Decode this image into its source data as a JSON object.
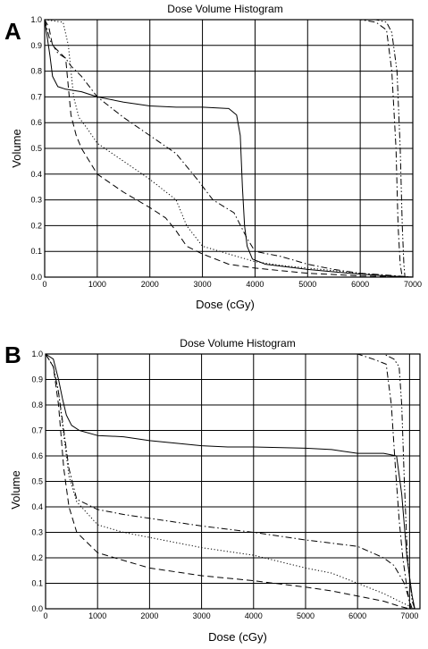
{
  "chart_data": [
    {
      "panel": "A",
      "type": "line",
      "title": "Dose Volume Histogram",
      "xlabel": "Dose (cGy)",
      "ylabel": "Volume",
      "xlim": [
        0,
        7000
      ],
      "ylim": [
        0,
        1
      ],
      "x_ticks": [
        "0",
        "1000",
        "2000",
        "3000",
        "4000",
        "5000",
        "6000",
        "7000"
      ],
      "y_ticks": [
        "0.0",
        "0.1",
        "0.2",
        "0.3",
        "0.4",
        "0.5",
        "0.6",
        "0.7",
        "0.8",
        "0.9",
        "1.0"
      ],
      "grid": true,
      "series": [
        {
          "style": "solid",
          "points": [
            [
              0,
              1.0
            ],
            [
              100,
              0.86
            ],
            [
              150,
              0.78
            ],
            [
              250,
              0.74
            ],
            [
              400,
              0.73
            ],
            [
              700,
              0.72
            ],
            [
              1000,
              0.7
            ],
            [
              1500,
              0.68
            ],
            [
              2000,
              0.665
            ],
            [
              2500,
              0.66
            ],
            [
              3000,
              0.66
            ],
            [
              3500,
              0.655
            ],
            [
              3650,
              0.63
            ],
            [
              3720,
              0.55
            ],
            [
              3760,
              0.35
            ],
            [
              3800,
              0.2
            ],
            [
              3850,
              0.12
            ],
            [
              3950,
              0.07
            ],
            [
              4200,
              0.05
            ],
            [
              5000,
              0.03
            ],
            [
              5800,
              0.015
            ],
            [
              6500,
              0.005
            ],
            [
              7000,
              0.0
            ]
          ]
        },
        {
          "style": "dashdot",
          "points": [
            [
              0,
              1.0
            ],
            [
              100,
              0.92
            ],
            [
              250,
              0.87
            ],
            [
              400,
              0.85
            ],
            [
              500,
              0.82
            ],
            [
              700,
              0.78
            ],
            [
              1000,
              0.7
            ],
            [
              1500,
              0.62
            ],
            [
              2000,
              0.55
            ],
            [
              2500,
              0.48
            ],
            [
              2900,
              0.38
            ],
            [
              3200,
              0.3
            ],
            [
              3600,
              0.25
            ],
            [
              3850,
              0.15
            ],
            [
              4000,
              0.1
            ],
            [
              4500,
              0.08
            ],
            [
              5000,
              0.05
            ],
            [
              5500,
              0.03
            ],
            [
              6000,
              0.015
            ],
            [
              6500,
              0.008
            ],
            [
              7000,
              0.0
            ]
          ]
        },
        {
          "style": "dotted",
          "points": [
            [
              0,
              1.0
            ],
            [
              350,
              0.99
            ],
            [
              450,
              0.9
            ],
            [
              550,
              0.7
            ],
            [
              650,
              0.62
            ],
            [
              800,
              0.58
            ],
            [
              1000,
              0.52
            ],
            [
              1500,
              0.45
            ],
            [
              2000,
              0.38
            ],
            [
              2500,
              0.3
            ],
            [
              2700,
              0.2
            ],
            [
              3000,
              0.12
            ],
            [
              3500,
              0.09
            ],
            [
              4000,
              0.06
            ],
            [
              4500,
              0.045
            ],
            [
              5000,
              0.035
            ],
            [
              5500,
              0.025
            ],
            [
              6000,
              0.015
            ],
            [
              6500,
              0.005
            ],
            [
              7000,
              0.0
            ]
          ]
        },
        {
          "style": "dashed",
          "points": [
            [
              0,
              1.0
            ],
            [
              80,
              0.97
            ],
            [
              150,
              0.9
            ],
            [
              250,
              0.88
            ],
            [
              400,
              0.85
            ],
            [
              500,
              0.63
            ],
            [
              600,
              0.55
            ],
            [
              700,
              0.5
            ],
            [
              1000,
              0.4
            ],
            [
              1500,
              0.33
            ],
            [
              2000,
              0.27
            ],
            [
              2300,
              0.23
            ],
            [
              2500,
              0.18
            ],
            [
              2700,
              0.12
            ],
            [
              3000,
              0.09
            ],
            [
              3500,
              0.05
            ],
            [
              4000,
              0.035
            ],
            [
              4500,
              0.025
            ],
            [
              5000,
              0.015
            ],
            [
              5500,
              0.01
            ],
            [
              6000,
              0.005
            ],
            [
              7000,
              0.0
            ]
          ]
        },
        {
          "style": "dashdot",
          "points": [
            [
              0,
              1.0
            ],
            [
              6000,
              1.0
            ],
            [
              6300,
              0.99
            ],
            [
              6500,
              0.96
            ],
            [
              6600,
              0.8
            ],
            [
              6680,
              0.5
            ],
            [
              6720,
              0.2
            ],
            [
              6760,
              0.05
            ],
            [
              6800,
              0.0
            ]
          ]
        },
        {
          "style": "dashdotdot",
          "points": [
            [
              0,
              1.0
            ],
            [
              6300,
              1.0
            ],
            [
              6500,
              0.99
            ],
            [
              6600,
              0.95
            ],
            [
              6700,
              0.8
            ],
            [
              6760,
              0.5
            ],
            [
              6800,
              0.2
            ],
            [
              6830,
              0.05
            ],
            [
              6850,
              0.0
            ]
          ]
        }
      ]
    },
    {
      "panel": "B",
      "type": "line",
      "title": "Dose Volume Histogram",
      "xlabel": "Dose (cGy)",
      "ylabel": "Volume",
      "xlim": [
        0,
        7200
      ],
      "ylim": [
        0,
        1
      ],
      "x_ticks": [
        "0",
        "1000",
        "2000",
        "3000",
        "4000",
        "5000",
        "6000",
        "7000"
      ],
      "y_ticks": [
        "0.0",
        "0.1",
        "0.2",
        "0.3",
        "0.4",
        "0.5",
        "0.6",
        "0.7",
        "0.8",
        "0.9",
        "1.0"
      ],
      "grid": true,
      "series": [
        {
          "style": "solid",
          "points": [
            [
              0,
              1.0
            ],
            [
              150,
              0.98
            ],
            [
              250,
              0.9
            ],
            [
              330,
              0.82
            ],
            [
              400,
              0.76
            ],
            [
              500,
              0.72
            ],
            [
              650,
              0.7
            ],
            [
              1000,
              0.68
            ],
            [
              1500,
              0.675
            ],
            [
              2000,
              0.66
            ],
            [
              2500,
              0.65
            ],
            [
              3000,
              0.64
            ],
            [
              3500,
              0.635
            ],
            [
              4000,
              0.635
            ],
            [
              5000,
              0.63
            ],
            [
              5500,
              0.625
            ],
            [
              6000,
              0.61
            ],
            [
              6500,
              0.61
            ],
            [
              6750,
              0.6
            ],
            [
              6850,
              0.45
            ],
            [
              6950,
              0.2
            ],
            [
              7050,
              0.05
            ],
            [
              7100,
              0.0
            ]
          ]
        },
        {
          "style": "dashdot",
          "points": [
            [
              0,
              1.0
            ],
            [
              150,
              0.95
            ],
            [
              250,
              0.85
            ],
            [
              350,
              0.7
            ],
            [
              450,
              0.55
            ],
            [
              600,
              0.43
            ],
            [
              1000,
              0.39
            ],
            [
              1500,
              0.37
            ],
            [
              2000,
              0.355
            ],
            [
              3000,
              0.325
            ],
            [
              4000,
              0.3
            ],
            [
              5000,
              0.27
            ],
            [
              6000,
              0.245
            ],
            [
              6500,
              0.2
            ],
            [
              6700,
              0.17
            ],
            [
              6900,
              0.1
            ],
            [
              7000,
              0.03
            ],
            [
              7050,
              0.0
            ]
          ]
        },
        {
          "style": "dotted",
          "points": [
            [
              0,
              1.0
            ],
            [
              150,
              0.95
            ],
            [
              250,
              0.85
            ],
            [
              350,
              0.68
            ],
            [
              450,
              0.52
            ],
            [
              600,
              0.42
            ],
            [
              1000,
              0.33
            ],
            [
              1500,
              0.3
            ],
            [
              2000,
              0.28
            ],
            [
              3000,
              0.24
            ],
            [
              4000,
              0.21
            ],
            [
              5000,
              0.16
            ],
            [
              5500,
              0.14
            ],
            [
              6000,
              0.1
            ],
            [
              6500,
              0.06
            ],
            [
              6800,
              0.03
            ],
            [
              7000,
              0.01
            ],
            [
              7100,
              0.0
            ]
          ]
        },
        {
          "style": "dashed",
          "points": [
            [
              0,
              1.0
            ],
            [
              150,
              0.95
            ],
            [
              250,
              0.8
            ],
            [
              350,
              0.55
            ],
            [
              450,
              0.4
            ],
            [
              600,
              0.3
            ],
            [
              1000,
              0.22
            ],
            [
              1500,
              0.19
            ],
            [
              2000,
              0.16
            ],
            [
              3000,
              0.13
            ],
            [
              4000,
              0.11
            ],
            [
              5000,
              0.085
            ],
            [
              5500,
              0.07
            ],
            [
              6000,
              0.05
            ],
            [
              6500,
              0.03
            ],
            [
              6800,
              0.01
            ],
            [
              7000,
              0.0
            ]
          ]
        },
        {
          "style": "dashdot",
          "points": [
            [
              0,
              1.0
            ],
            [
              6000,
              1.0
            ],
            [
              6300,
              0.98
            ],
            [
              6550,
              0.96
            ],
            [
              6650,
              0.8
            ],
            [
              6730,
              0.55
            ],
            [
              6800,
              0.35
            ],
            [
              6870,
              0.2
            ],
            [
              6950,
              0.08
            ],
            [
              7020,
              0.0
            ]
          ]
        },
        {
          "style": "dashdotdot",
          "points": [
            [
              0,
              1.0
            ],
            [
              6500,
              1.0
            ],
            [
              6700,
              0.98
            ],
            [
              6800,
              0.95
            ],
            [
              6850,
              0.8
            ],
            [
              6900,
              0.5
            ],
            [
              6960,
              0.2
            ],
            [
              7050,
              0.03
            ],
            [
              7100,
              0.0
            ]
          ]
        }
      ]
    }
  ]
}
